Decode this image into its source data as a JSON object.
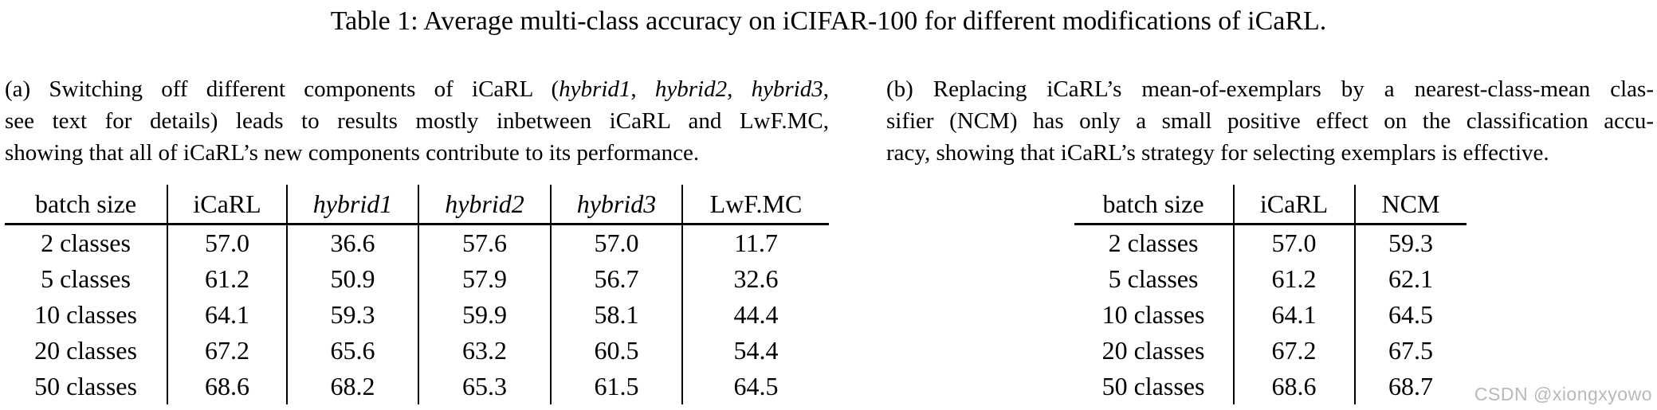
{
  "title": "Table 1: Average multi-class accuracy on iCIFAR-100 for different modifications of iCaRL.",
  "colors": {
    "background": "#ffffff",
    "text": "#000000",
    "watermark": "#b9b9b9",
    "rule": "#000000"
  },
  "panel_a": {
    "caption_lines": [
      [
        {
          "t": "(a) Switching off different components of iCaRL (",
          "i": false
        },
        {
          "t": "hybrid1",
          "i": true
        },
        {
          "t": ", ",
          "i": false
        },
        {
          "t": "hybrid2",
          "i": true
        },
        {
          "t": ", ",
          "i": false
        },
        {
          "t": "hybrid3",
          "i": true
        },
        {
          "t": ",",
          "i": false
        }
      ],
      [
        {
          "t": "see text for details) leads to results mostly inbetween iCaRL and LwF.MC,",
          "i": false
        }
      ],
      [
        {
          "t": "showing that all of iCaRL’s new components contribute to its performance.",
          "i": false
        }
      ]
    ],
    "table": {
      "headers": [
        {
          "text": "batch size",
          "italic": false
        },
        {
          "text": "iCaRL",
          "italic": false
        },
        {
          "text": "hybrid1",
          "italic": true
        },
        {
          "text": "hybrid2",
          "italic": true
        },
        {
          "text": "hybrid3",
          "italic": true
        },
        {
          "text": "LwF.MC",
          "italic": false
        }
      ],
      "rows": [
        {
          "label": "2 classes",
          "values": [
            "57.0",
            "36.6",
            "57.6",
            "57.0",
            "11.7"
          ]
        },
        {
          "label": "5 classes",
          "values": [
            "61.2",
            "50.9",
            "57.9",
            "56.7",
            "32.6"
          ]
        },
        {
          "label": "10 classes",
          "values": [
            "64.1",
            "59.3",
            "59.9",
            "58.1",
            "44.4"
          ]
        },
        {
          "label": "20 classes",
          "values": [
            "67.2",
            "65.6",
            "63.2",
            "60.5",
            "54.4"
          ]
        },
        {
          "label": "50 classes",
          "values": [
            "68.6",
            "68.2",
            "65.3",
            "61.5",
            "64.5"
          ]
        }
      ]
    }
  },
  "panel_b": {
    "caption_lines": [
      [
        {
          "t": "(b) Replacing iCaRL’s mean-of-exemplars by a nearest-class-mean clas-",
          "i": false
        }
      ],
      [
        {
          "t": "sifier (NCM) has only a small positive effect on the classification accu-",
          "i": false
        }
      ],
      [
        {
          "t": "racy, showing that iCaRL’s strategy for selecting exemplars is effective.",
          "i": false
        }
      ]
    ],
    "table": {
      "headers": [
        {
          "text": "batch size",
          "italic": false
        },
        {
          "text": "iCaRL",
          "italic": false
        },
        {
          "text": "NCM",
          "italic": false
        }
      ],
      "rows": [
        {
          "label": "2 classes",
          "values": [
            "57.0",
            "59.3"
          ]
        },
        {
          "label": "5 classes",
          "values": [
            "61.2",
            "62.1"
          ]
        },
        {
          "label": "10 classes",
          "values": [
            "64.1",
            "64.5"
          ]
        },
        {
          "label": "20 classes",
          "values": [
            "67.2",
            "67.5"
          ]
        },
        {
          "label": "50 classes",
          "values": [
            "68.6",
            "68.7"
          ]
        }
      ]
    }
  },
  "watermark": "CSDN @xiongxyowo"
}
